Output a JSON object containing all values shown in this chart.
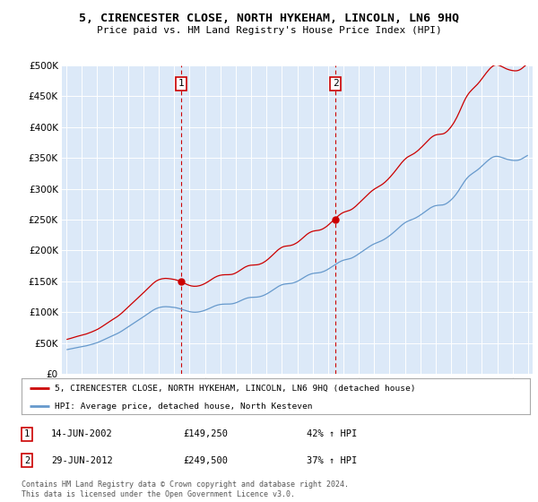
{
  "title": "5, CIRENCESTER CLOSE, NORTH HYKEHAM, LINCOLN, LN6 9HQ",
  "subtitle": "Price paid vs. HM Land Registry's House Price Index (HPI)",
  "legend_line1": "5, CIRENCESTER CLOSE, NORTH HYKEHAM, LINCOLN, LN6 9HQ (detached house)",
  "legend_line2": "HPI: Average price, detached house, North Kesteven",
  "footnote": "Contains HM Land Registry data © Crown copyright and database right 2024.\nThis data is licensed under the Open Government Licence v3.0.",
  "transaction1_date": "14-JUN-2002",
  "transaction1_price": "£149,250",
  "transaction1_hpi": "42% ↑ HPI",
  "transaction2_date": "29-JUN-2012",
  "transaction2_price": "£249,500",
  "transaction2_hpi": "37% ↑ HPI",
  "marker1_x": 2002.46,
  "marker1_y": 149250,
  "marker2_x": 2012.49,
  "marker2_y": 249500,
  "vline1_x": 2002.46,
  "vline2_x": 2012.49,
  "ylim": [
    0,
    500000
  ],
  "xlim": [
    1994.7,
    2025.3
  ],
  "background_color": "#dce9f8",
  "red_color": "#cc0000",
  "blue_color": "#6699cc",
  "hpi_index": [
    52.3,
    52.8,
    53.4,
    53.9,
    54.5,
    55.1,
    55.7,
    56.3,
    56.8,
    57.3,
    57.8,
    58.2,
    58.7,
    59.2,
    59.8,
    60.4,
    61.1,
    61.8,
    62.5,
    63.3,
    64.1,
    64.9,
    65.8,
    66.7,
    67.7,
    68.8,
    70.0,
    71.2,
    72.5,
    73.8,
    75.1,
    76.4,
    77.7,
    79.0,
    80.3,
    81.5,
    82.7,
    83.9,
    85.1,
    86.4,
    87.8,
    89.3,
    90.9,
    92.6,
    94.4,
    96.3,
    98.2,
    100.0,
    101.8,
    103.6,
    105.4,
    107.2,
    109.0,
    110.8,
    112.6,
    114.4,
    116.2,
    118.0,
    119.8,
    121.6,
    123.4,
    125.3,
    127.2,
    129.2,
    131.1,
    133.0,
    134.8,
    136.5,
    138.1,
    139.5,
    140.7,
    141.7,
    142.5,
    143.1,
    143.6,
    143.9,
    144.1,
    144.2,
    144.1,
    143.9,
    143.7,
    143.4,
    143.1,
    142.8,
    142.4,
    141.9,
    141.3,
    140.6,
    139.8,
    139.0,
    138.1,
    137.2,
    136.3,
    135.4,
    134.6,
    133.9,
    133.3,
    132.8,
    132.5,
    132.3,
    132.3,
    132.4,
    132.7,
    133.1,
    133.6,
    134.3,
    135.1,
    136.0,
    137.0,
    138.1,
    139.3,
    140.5,
    141.8,
    143.1,
    144.3,
    145.5,
    146.5,
    147.4,
    148.1,
    148.7,
    149.1,
    149.4,
    149.6,
    149.7,
    149.7,
    149.7,
    149.8,
    149.9,
    150.1,
    150.5,
    151.1,
    151.9,
    152.9,
    154.0,
    155.2,
    156.5,
    157.8,
    159.1,
    160.3,
    161.4,
    162.3,
    163.1,
    163.6,
    164.0,
    164.2,
    164.3,
    164.4,
    164.5,
    164.7,
    165.0,
    165.5,
    166.2,
    167.0,
    168.0,
    169.2,
    170.5,
    172.0,
    173.6,
    175.3,
    177.1,
    178.9,
    180.8,
    182.7,
    184.5,
    186.3,
    187.9,
    189.3,
    190.5,
    191.5,
    192.2,
    192.7,
    193.0,
    193.2,
    193.4,
    193.7,
    194.2,
    194.8,
    195.6,
    196.6,
    197.7,
    199.0,
    200.5,
    202.1,
    203.8,
    205.5,
    207.3,
    208.9,
    210.5,
    211.9,
    213.1,
    214.1,
    214.9,
    215.5,
    215.9,
    216.2,
    216.4,
    216.7,
    217.1,
    217.7,
    218.5,
    219.5,
    220.7,
    222.0,
    223.5,
    225.2,
    226.9,
    228.7,
    230.5,
    232.3,
    234.1,
    235.9,
    237.6,
    239.3,
    240.8,
    242.1,
    243.2,
    244.1,
    244.8,
    245.4,
    246.0,
    246.6,
    247.4,
    248.4,
    249.7,
    251.2,
    252.8,
    254.6,
    256.4,
    258.3,
    260.2,
    262.1,
    264.0,
    265.9,
    267.8,
    269.7,
    271.5,
    273.3,
    275.0,
    276.6,
    278.0,
    279.3,
    280.5,
    281.6,
    282.7,
    283.8,
    285.0,
    286.3,
    287.8,
    289.4,
    291.2,
    293.1,
    295.1,
    297.2,
    299.4,
    301.7,
    304.0,
    306.4,
    308.9,
    311.4,
    313.9,
    316.4,
    318.8,
    321.0,
    323.0,
    324.8,
    326.4,
    327.7,
    328.8,
    329.8,
    330.8,
    331.9,
    333.1,
    334.5,
    336.0,
    337.6,
    339.4,
    341.3,
    343.2,
    345.2,
    347.2,
    349.2,
    351.2,
    353.2,
    355.0,
    356.7,
    358.1,
    359.3,
    360.2,
    360.8,
    361.2,
    361.4,
    361.5,
    361.7,
    362.1,
    362.8,
    363.9,
    365.4,
    367.2,
    369.3,
    371.6,
    374.2,
    377.0,
    380.1,
    383.5,
    387.2,
    391.2,
    395.4,
    399.8,
    404.2,
    408.5,
    412.6,
    416.3,
    419.6,
    422.5,
    425.0,
    427.2,
    429.2,
    431.1,
    433.0,
    434.9,
    436.9,
    439.1,
    441.4,
    443.9,
    446.5,
    449.1,
    451.7,
    454.2,
    456.6,
    458.9,
    461.0,
    462.8,
    464.3,
    465.4,
    466.0,
    466.2,
    466.0,
    465.5,
    464.7,
    463.8,
    462.8,
    461.8,
    460.9,
    460.0,
    459.3,
    458.7,
    458.2,
    457.8,
    457.5,
    457.3,
    457.3,
    457.5,
    458.0,
    458.8,
    459.9,
    461.3,
    462.9,
    464.6,
    466.3,
    467.9,
    469.4,
    470.7,
    471.9,
    473.0,
    474.1,
    475.3,
    476.6,
    478.1,
    479.8,
    481.6,
    483.5,
    485.3
  ]
}
